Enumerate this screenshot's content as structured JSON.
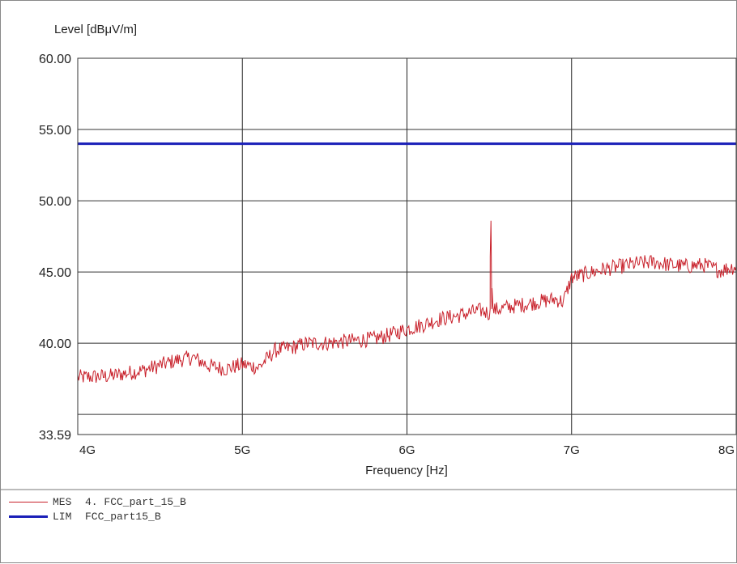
{
  "chart_data": {
    "type": "line",
    "ylabel": "Level [dBμV/m]",
    "xlabel": "Frequency [Hz]",
    "xlim": [
      4000000000,
      8000000000
    ],
    "ylim": [
      33.59,
      60.0
    ],
    "x_ticks": [
      4000000000,
      5000000000,
      6000000000,
      7000000000,
      8000000000
    ],
    "x_tick_labels": [
      "4G",
      "5G",
      "6G",
      "7G",
      "8G"
    ],
    "y_ticks": [
      33.59,
      40.0,
      45.0,
      50.0,
      55.0,
      60.0
    ],
    "y_tick_labels": [
      "33.59",
      "40.00",
      "45.00",
      "50.00",
      "55.00",
      "60.00"
    ],
    "y_minor_gridlines": [
      35.0
    ],
    "grid": true,
    "series": [
      {
        "name": "MES",
        "color": "#c8202a",
        "x": [
          4000000000,
          4200000000,
          4400000000,
          4600000000,
          4700000000,
          4800000000,
          4900000000,
          5000000000,
          5100000000,
          5200000000,
          5300000000,
          5400000000,
          5500000000,
          5600000000,
          5700000000,
          5800000000,
          5900000000,
          6000000000,
          6100000000,
          6200000000,
          6300000000,
          6400000000,
          6450000000,
          6500000000,
          6510000000,
          6520000000,
          6600000000,
          6700000000,
          6800000000,
          6900000000,
          6950000000,
          7000000000,
          7100000000,
          7200000000,
          7300000000,
          7400000000,
          7500000000,
          7600000000,
          7700000000,
          7800000000,
          7900000000,
          8000000000
        ],
        "values": [
          37.6,
          37.7,
          38.1,
          38.8,
          39.0,
          38.4,
          38.2,
          38.5,
          38.3,
          39.5,
          39.7,
          40.0,
          40.0,
          40.1,
          40.2,
          40.3,
          40.6,
          41.0,
          41.3,
          41.7,
          41.9,
          42.2,
          42.3,
          42.1,
          48.6,
          42.3,
          42.5,
          42.7,
          42.9,
          43.1,
          42.9,
          44.6,
          44.9,
          45.2,
          45.4,
          45.6,
          45.7,
          45.5,
          45.4,
          45.5,
          45.1,
          45.4
        ]
      },
      {
        "name": "LIM",
        "color": "#1a1fb8",
        "x": [
          4000000000,
          8000000000
        ],
        "values": [
          54.0,
          54.0
        ]
      }
    ]
  },
  "legend": [
    {
      "code": "MES",
      "text": "4. FCC_part_15_B",
      "color": "#c8202a"
    },
    {
      "code": "LIM",
      "text": "FCC_part15_B",
      "color": "#1a1fb8"
    }
  ]
}
